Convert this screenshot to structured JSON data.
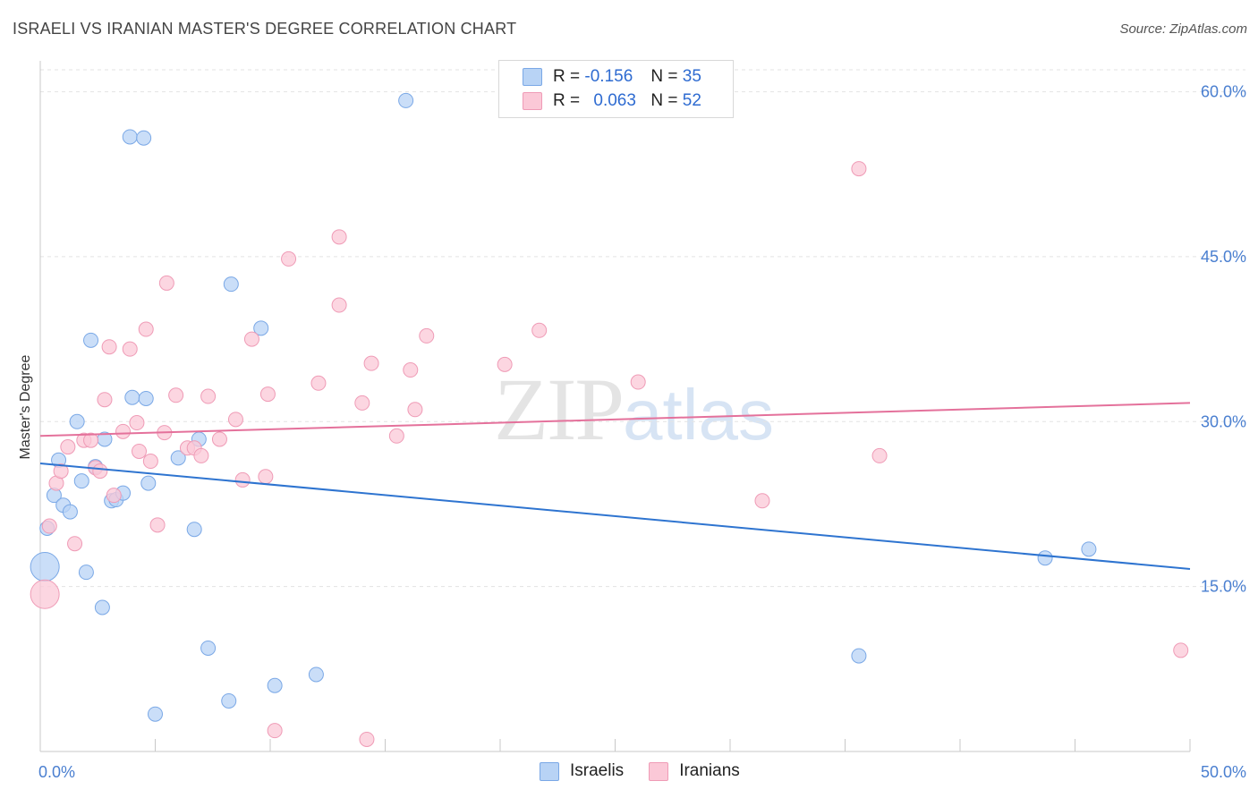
{
  "header": {
    "title": "ISRAELI VS IRANIAN MASTER'S DEGREE CORRELATION CHART",
    "source": "Source: ZipAtlas.com"
  },
  "watermark": {
    "zip": "ZIP",
    "atlas": "atlas"
  },
  "legend": {
    "r_label": "R =",
    "n_label": "N =",
    "israelis": {
      "r": "-0.156",
      "n": "35"
    },
    "iranians": {
      "r": "0.063",
      "n": "52"
    }
  },
  "bottom_legend": {
    "israelis": "Israelis",
    "iranians": "Iranians"
  },
  "colors": {
    "israelis_fill": "#b8d3f5",
    "israelis_stroke": "#7aa8e6",
    "israelis_line": "#2e74d0",
    "iranians_fill": "#fbc8d7",
    "iranians_stroke": "#ef9bb6",
    "iranians_line": "#e4719b",
    "tick": "#4a7fd0",
    "grid": "#e3e3e3"
  },
  "chart_data": {
    "type": "scatter",
    "title": "ISRAELI VS IRANIAN MASTER'S DEGREE CORRELATION CHART",
    "xlabel": "",
    "ylabel": "Master's Degree",
    "xlim": [
      0,
      50
    ],
    "ylim": [
      0,
      62
    ],
    "x_tick_labels": [
      "0.0%",
      "50.0%"
    ],
    "y_ticks": [
      15,
      30,
      45,
      60
    ],
    "y_tick_labels": [
      "15.0%",
      "30.0%",
      "45.0%",
      "60.0%"
    ],
    "grid": true,
    "series": [
      {
        "name": "Israelis",
        "trend": {
          "x": [
            0,
            50
          ],
          "y": [
            26.2,
            16.6
          ]
        },
        "points": [
          {
            "x": 0.2,
            "y": 16.8,
            "big": true
          },
          {
            "x": 0.3,
            "y": 20.3
          },
          {
            "x": 0.6,
            "y": 23.3
          },
          {
            "x": 0.8,
            "y": 26.5
          },
          {
            "x": 1.0,
            "y": 22.4
          },
          {
            "x": 1.3,
            "y": 21.8
          },
          {
            "x": 1.6,
            "y": 30.0
          },
          {
            "x": 1.8,
            "y": 24.6
          },
          {
            "x": 2.0,
            "y": 16.3
          },
          {
            "x": 2.2,
            "y": 37.4
          },
          {
            "x": 2.4,
            "y": 25.9
          },
          {
            "x": 2.7,
            "y": 13.1
          },
          {
            "x": 2.8,
            "y": 28.4
          },
          {
            "x": 3.1,
            "y": 22.8
          },
          {
            "x": 3.3,
            "y": 22.9
          },
          {
            "x": 3.6,
            "y": 23.5
          },
          {
            "x": 3.9,
            "y": 55.9
          },
          {
            "x": 4.0,
            "y": 32.2
          },
          {
            "x": 4.5,
            "y": 55.8
          },
          {
            "x": 4.6,
            "y": 32.1
          },
          {
            "x": 4.7,
            "y": 24.4
          },
          {
            "x": 5.0,
            "y": 3.4
          },
          {
            "x": 6.0,
            "y": 26.7
          },
          {
            "x": 6.7,
            "y": 20.2
          },
          {
            "x": 6.9,
            "y": 28.4
          },
          {
            "x": 7.3,
            "y": 9.4
          },
          {
            "x": 8.2,
            "y": 4.6
          },
          {
            "x": 8.3,
            "y": 42.5
          },
          {
            "x": 9.6,
            "y": 38.5
          },
          {
            "x": 10.2,
            "y": 6.0
          },
          {
            "x": 12.0,
            "y": 7.0
          },
          {
            "x": 15.9,
            "y": 59.2
          },
          {
            "x": 35.6,
            "y": 8.7
          },
          {
            "x": 43.7,
            "y": 17.6
          },
          {
            "x": 45.6,
            "y": 18.4
          }
        ]
      },
      {
        "name": "Iranians",
        "trend": {
          "x": [
            0,
            50
          ],
          "y": [
            28.7,
            31.7
          ]
        },
        "points": [
          {
            "x": 0.2,
            "y": 14.3,
            "big": true
          },
          {
            "x": 0.4,
            "y": 20.5
          },
          {
            "x": 0.7,
            "y": 24.4
          },
          {
            "x": 0.9,
            "y": 25.5
          },
          {
            "x": 1.2,
            "y": 27.7
          },
          {
            "x": 1.5,
            "y": 18.9
          },
          {
            "x": 1.9,
            "y": 28.3
          },
          {
            "x": 2.2,
            "y": 28.3
          },
          {
            "x": 2.4,
            "y": 25.8
          },
          {
            "x": 2.6,
            "y": 25.5
          },
          {
            "x": 2.8,
            "y": 32.0
          },
          {
            "x": 3.0,
            "y": 36.8
          },
          {
            "x": 3.2,
            "y": 23.3
          },
          {
            "x": 3.6,
            "y": 29.1
          },
          {
            "x": 3.9,
            "y": 36.6
          },
          {
            "x": 4.2,
            "y": 29.9
          },
          {
            "x": 4.3,
            "y": 27.3
          },
          {
            "x": 4.6,
            "y": 38.4
          },
          {
            "x": 4.8,
            "y": 26.4
          },
          {
            "x": 5.1,
            "y": 20.6
          },
          {
            "x": 5.4,
            "y": 29.0
          },
          {
            "x": 5.5,
            "y": 42.6
          },
          {
            "x": 5.9,
            "y": 32.4
          },
          {
            "x": 6.4,
            "y": 27.6
          },
          {
            "x": 6.7,
            "y": 27.6
          },
          {
            "x": 7.0,
            "y": 26.9
          },
          {
            "x": 7.3,
            "y": 32.3
          },
          {
            "x": 7.8,
            "y": 28.4
          },
          {
            "x": 8.5,
            "y": 30.2
          },
          {
            "x": 8.8,
            "y": 24.7
          },
          {
            "x": 9.2,
            "y": 37.5
          },
          {
            "x": 9.8,
            "y": 25.0
          },
          {
            "x": 9.9,
            "y": 32.5
          },
          {
            "x": 10.2,
            "y": 1.9
          },
          {
            "x": 10.8,
            "y": 44.8
          },
          {
            "x": 12.1,
            "y": 33.5
          },
          {
            "x": 13.0,
            "y": 40.6
          },
          {
            "x": 13.0,
            "y": 46.8
          },
          {
            "x": 14.0,
            "y": 31.7
          },
          {
            "x": 14.2,
            "y": 1.1
          },
          {
            "x": 14.4,
            "y": 35.3
          },
          {
            "x": 15.5,
            "y": 28.7
          },
          {
            "x": 16.1,
            "y": 34.7
          },
          {
            "x": 16.3,
            "y": 31.1
          },
          {
            "x": 16.8,
            "y": 37.8
          },
          {
            "x": 20.2,
            "y": 35.2
          },
          {
            "x": 21.7,
            "y": 38.3
          },
          {
            "x": 26.0,
            "y": 33.6
          },
          {
            "x": 31.4,
            "y": 22.8
          },
          {
            "x": 35.6,
            "y": 53.0
          },
          {
            "x": 36.5,
            "y": 26.9
          },
          {
            "x": 49.6,
            "y": 9.2
          }
        ]
      }
    ]
  }
}
